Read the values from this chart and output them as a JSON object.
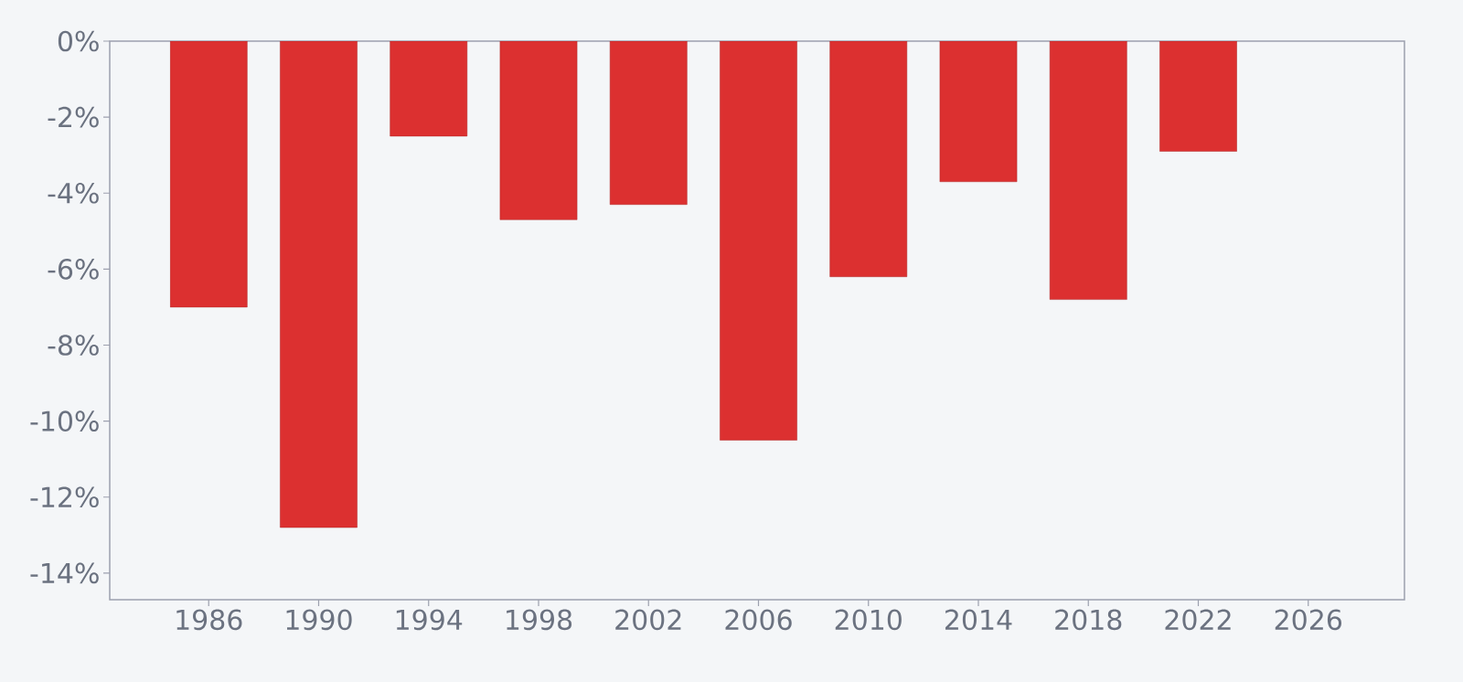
{
  "chart_data": {
    "type": "bar",
    "x": [
      1986,
      1990,
      1994,
      1998,
      2002,
      2006,
      2010,
      2014,
      2018,
      2022
    ],
    "values": [
      -7.0,
      -12.8,
      -2.5,
      -4.7,
      -4.3,
      -10.5,
      -6.2,
      -3.7,
      -6.8,
      -2.9
    ],
    "color": "#dc3030",
    "xlim": [
      1982.4,
      2029.5
    ],
    "xticks": [
      1986,
      1990,
      1994,
      1998,
      2002,
      2006,
      2010,
      2014,
      2018,
      2022,
      2026
    ],
    "ylim": [
      -14.7,
      0
    ],
    "yticks": [
      {
        "value": 0,
        "label": "0%"
      },
      {
        "value": -2,
        "label": "-2%"
      },
      {
        "value": -4,
        "label": "-4%"
      },
      {
        "value": -6,
        "label": "-6%"
      },
      {
        "value": -8,
        "label": "-8%"
      },
      {
        "value": -10,
        "label": "-10%"
      },
      {
        "value": -12,
        "label": "-12%"
      },
      {
        "value": -14,
        "label": "-14%"
      }
    ],
    "grid": false
  }
}
